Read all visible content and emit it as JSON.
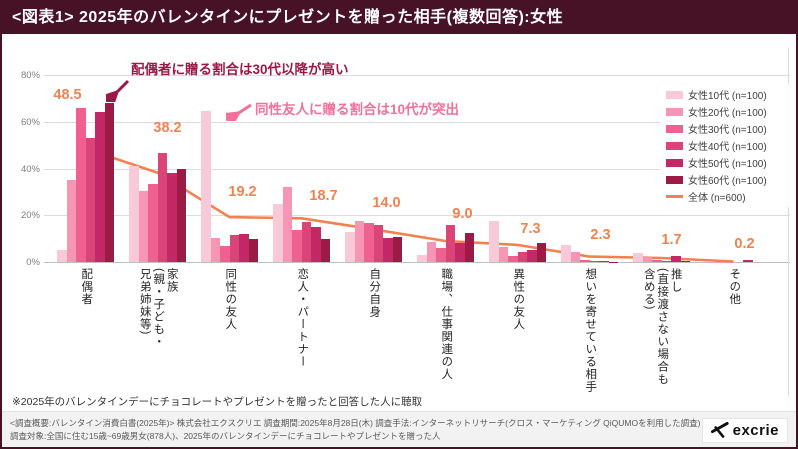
{
  "title": "<図表1> 2025年のバレンタインにプレゼントを贈った相手(複数回答):女性",
  "annotations": {
    "spouse": {
      "text": "配偶者に贈る割合は30代以降が高い",
      "color": "#9E1845"
    },
    "friend": {
      "text": "同性友人に贈る割合は10代が突出",
      "color": "#F2719A"
    }
  },
  "note": "※2025年のバレンタインデーにチョコレートやプレゼントを贈ったと回答した人に聴取",
  "footer": {
    "line1": "<調査概要:バレンタイン消費白書(2025年)> 株式会社エクスクリエ  調査期間:2025年8月28日(木)  調査手法:インターネットリサーチ(クロス・マーケティング QiQUMOを利用した調査)",
    "line2": "調査対象:全国に住む15歳~69歳男女(878人)、2025年のバレンタインデーにチョコレートやプレゼントを贈った人",
    "logo_text": "excrie"
  },
  "chart_data": {
    "type": "bar",
    "title": "2025年のバレンタインにプレゼントを贈った相手(複数回答):女性",
    "categories": [
      "配偶者",
      "家族\n(親・子ども・\n兄弟姉妹等)",
      "同性の友人",
      "恋人・パートナー",
      "自分自身",
      "職場、仕事関連の人",
      "異性の友人",
      "想いを寄せている相手",
      "推し\n(直接渡さない場合も\n含める)",
      "その他"
    ],
    "series": [
      {
        "name": "女性10代 (n=100)",
        "color": "#F8C9D9",
        "values": [
          5,
          41,
          64.5,
          25,
          12.7,
          3,
          17.5,
          7.5,
          3.8,
          0
        ]
      },
      {
        "name": "女性20代 (n=100)",
        "color": "#F795B5",
        "values": [
          35,
          30.5,
          10.5,
          32,
          17.4,
          8.5,
          6.3,
          4.5,
          2.2,
          0.2
        ]
      },
      {
        "name": "女性30代 (n=100)",
        "color": "#F06090",
        "values": [
          66,
          33.5,
          7,
          13.5,
          16.7,
          6,
          2.5,
          1,
          0.7,
          0
        ]
      },
      {
        "name": "女性40代 (n=100)",
        "color": "#DA4578",
        "values": [
          53,
          46.5,
          11.5,
          17,
          16,
          15.7,
          4.5,
          0.3,
          0.5,
          0
        ]
      },
      {
        "name": "女性50代 (n=100)",
        "color": "#C32765",
        "values": [
          64,
          38,
          12,
          15,
          10.4,
          8.3,
          5,
          0.3,
          2.5,
          1
        ]
      },
      {
        "name": "女性60代 (n=100)",
        "color": "#9C1B46",
        "values": [
          68,
          39.7,
          9.7,
          9.7,
          10.8,
          12.5,
          8,
          0.2,
          0.5,
          0
        ]
      }
    ],
    "line_series": {
      "name": "全体 (n=600)",
      "color": "#F2814F",
      "values": [
        48.5,
        38.2,
        19.2,
        18.7,
        14.0,
        9.0,
        7.3,
        2.3,
        1.7,
        0.2
      ]
    },
    "value_labels": [
      "48.5",
      "38.2",
      "19.2",
      "18.7",
      "14.0",
      "9.0",
      "7.3",
      "2.3",
      "1.7",
      "0.2"
    ],
    "value_label_color": "#F2814F",
    "yticks": [
      "0%",
      "20%",
      "40%",
      "60%",
      "80%"
    ],
    "ylim": [
      0,
      80
    ],
    "grid": true,
    "legend_position": "top-right"
  }
}
